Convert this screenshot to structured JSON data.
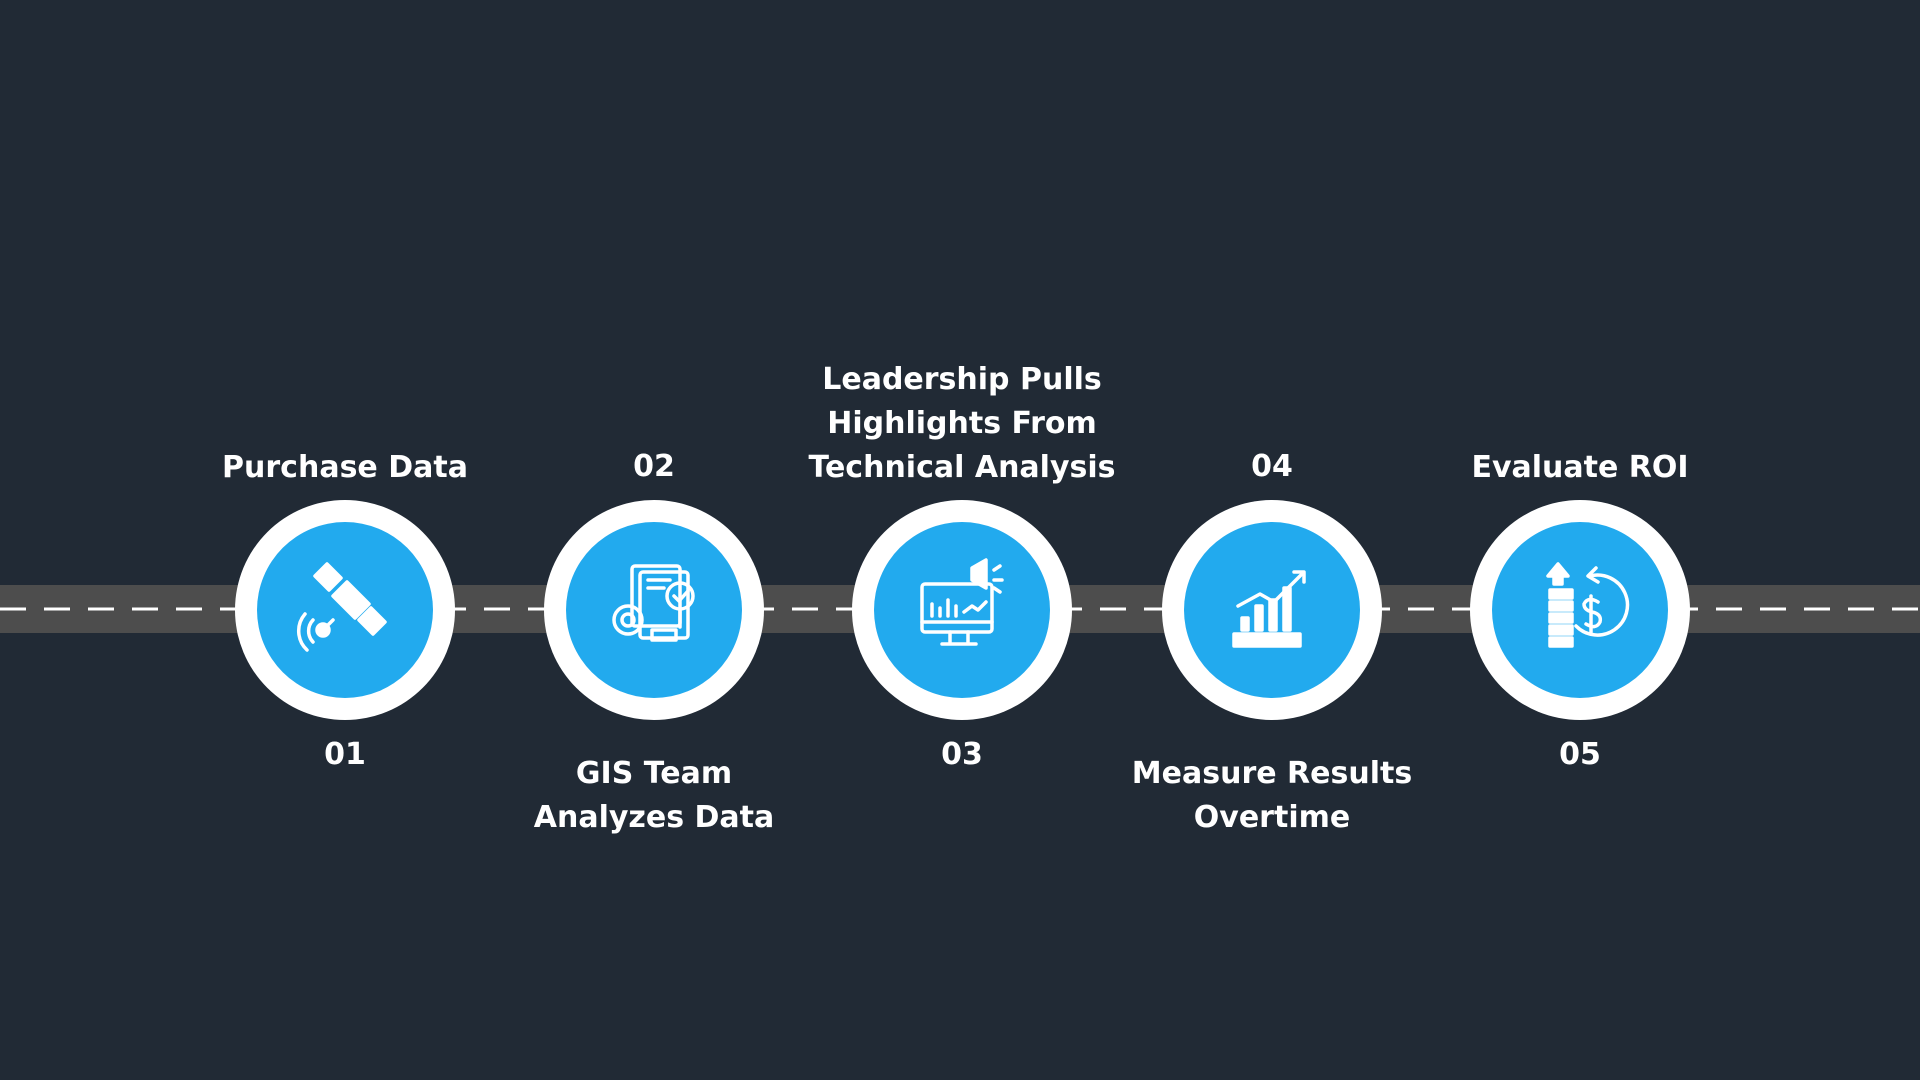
{
  "steps": [
    {
      "number": "01",
      "label": [
        "Purchase Data"
      ]
    },
    {
      "number": "02",
      "label": [
        "GIS Team",
        "Analyzes Data"
      ]
    },
    {
      "number": "03",
      "label": [
        "Leadership Pulls",
        "Highlights From",
        "Technical Analysis"
      ]
    },
    {
      "number": "04",
      "label": [
        "Measure Results",
        "Overtime"
      ]
    },
    {
      "number": "05",
      "label": [
        "Evaluate ROI"
      ]
    }
  ]
}
